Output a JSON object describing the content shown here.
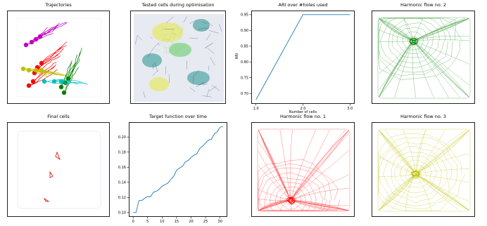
{
  "panels": {
    "trajectories": {
      "title": "Trajectories"
    },
    "tested_cells": {
      "title": "Tested cells during optimisation"
    },
    "final_cells": {
      "title": "Final cells"
    },
    "harmonic_1": {
      "title": "Harmonic flow no. 1"
    },
    "harmonic_2": {
      "title": "Harmonic flow no. 2"
    },
    "harmonic_3": {
      "title": "Harmonic flow no. 3"
    }
  },
  "colors": {
    "line": "#1f77b4",
    "harmonic_1": "#ff0000",
    "harmonic_2": "#008000",
    "harmonic_3": "#bfbf00",
    "traj": [
      "#c000c0",
      "#ff0000",
      "#bfbf00",
      "#008000",
      "#00bfbf"
    ],
    "cells": "#e00000"
  },
  "chart_data": [
    {
      "type": "line",
      "id": "ari",
      "title": "ARI over #holes used",
      "xlabel": "Number of cells",
      "ylabel": "ARI",
      "x": [
        1.0,
        2.0,
        3.0
      ],
      "values": [
        0.68,
        0.95,
        0.95
      ],
      "xlim": [
        0.9,
        3.1
      ],
      "ylim": [
        0.667,
        0.963
      ],
      "xticks": [
        "1.0",
        "2.0",
        "3.0"
      ],
      "yticks": [
        "0.70",
        "0.75",
        "0.80",
        "0.85",
        "0.90",
        "0.95"
      ],
      "yticks_values": [
        0.7,
        0.75,
        0.8,
        0.85,
        0.9,
        0.95
      ]
    },
    {
      "type": "line",
      "id": "target",
      "title": "Target function over time",
      "xlabel": "",
      "ylabel": "",
      "x": [
        0,
        1,
        2,
        3,
        4,
        5,
        6,
        7,
        8,
        9,
        10,
        11,
        12,
        13,
        14,
        15,
        16,
        17,
        18,
        19,
        20,
        21,
        22,
        23,
        24,
        25,
        26,
        27,
        28,
        29,
        30,
        31
      ],
      "values": [
        0.1,
        0.1,
        0.116,
        0.116,
        0.119,
        0.121,
        0.121,
        0.127,
        0.128,
        0.131,
        0.135,
        0.137,
        0.139,
        0.144,
        0.148,
        0.156,
        0.159,
        0.161,
        0.167,
        0.169,
        0.173,
        0.176,
        0.178,
        0.185,
        0.188,
        0.192,
        0.196,
        0.197,
        0.204,
        0.207,
        0.213,
        0.214
      ],
      "xlim": [
        -1.5,
        32.5
      ],
      "ylim": [
        0.0943,
        0.2197
      ],
      "xticks": [
        "0",
        "5",
        "10",
        "15",
        "20",
        "25",
        "30"
      ],
      "xticks_values": [
        0,
        5,
        10,
        15,
        20,
        25,
        30
      ],
      "yticks": [
        "0.10",
        "0.12",
        "0.14",
        "0.16",
        "0.18",
        "0.20"
      ],
      "yticks_values": [
        0.1,
        0.12,
        0.14,
        0.16,
        0.18,
        0.2
      ]
    }
  ]
}
